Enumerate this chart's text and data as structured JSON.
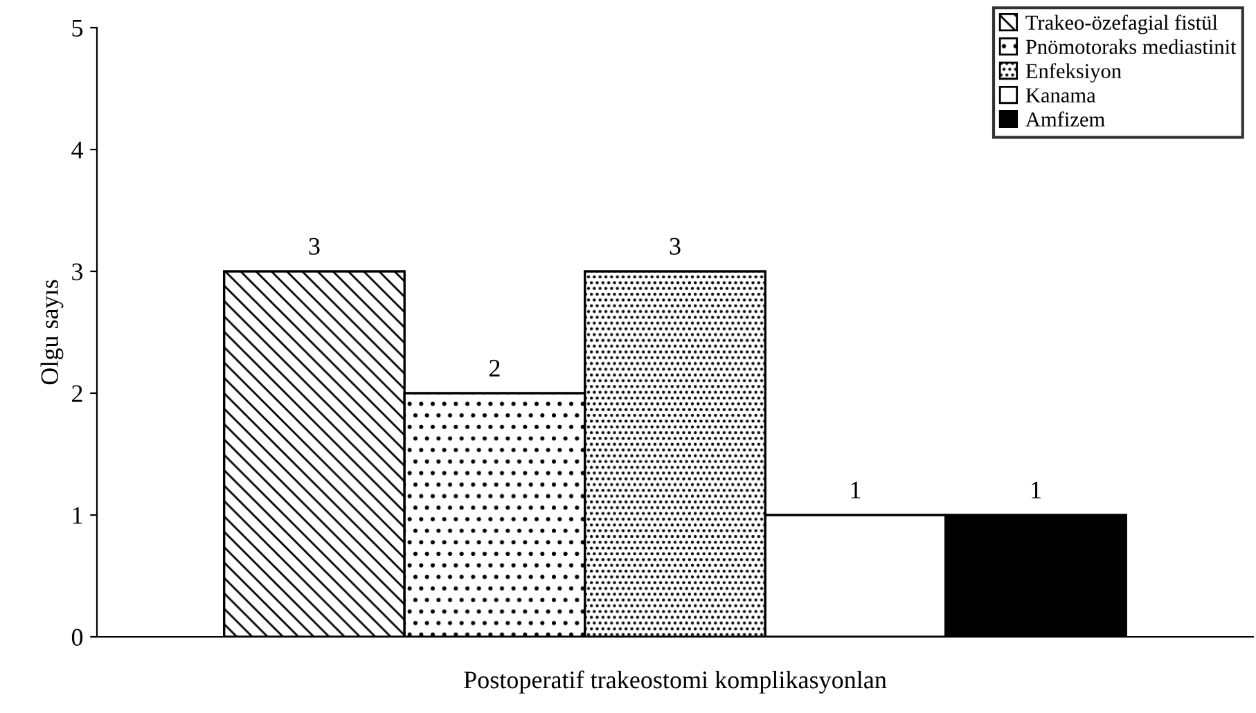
{
  "chart_data": {
    "type": "bar",
    "xlabel": "Postoperatif trakeostomi komplikasyonlan",
    "ylabel": "Olgu sayıs",
    "categories": [
      null
    ],
    "series": [
      {
        "name": "Trakeo-özefagial fistül",
        "color": "#000000",
        "values": [
          3
        ]
      },
      {
        "name": "Pnömotoraks mediastinit",
        "color": "#000000",
        "values": [
          2
        ]
      },
      {
        "name": "Enfeksiyon",
        "color": "#000000",
        "values": [
          3
        ]
      },
      {
        "name": "Kanama",
        "color": "#ffffff",
        "values": [
          1
        ]
      },
      {
        "name": "Amfizem",
        "color": "#000000",
        "values": [
          1
        ]
      }
    ],
    "ylim": [
      0,
      5
    ],
    "yticks": [
      0,
      1,
      2,
      3,
      4,
      5
    ],
    "grid": false,
    "legend": "top right",
    "data_labels": true
  }
}
